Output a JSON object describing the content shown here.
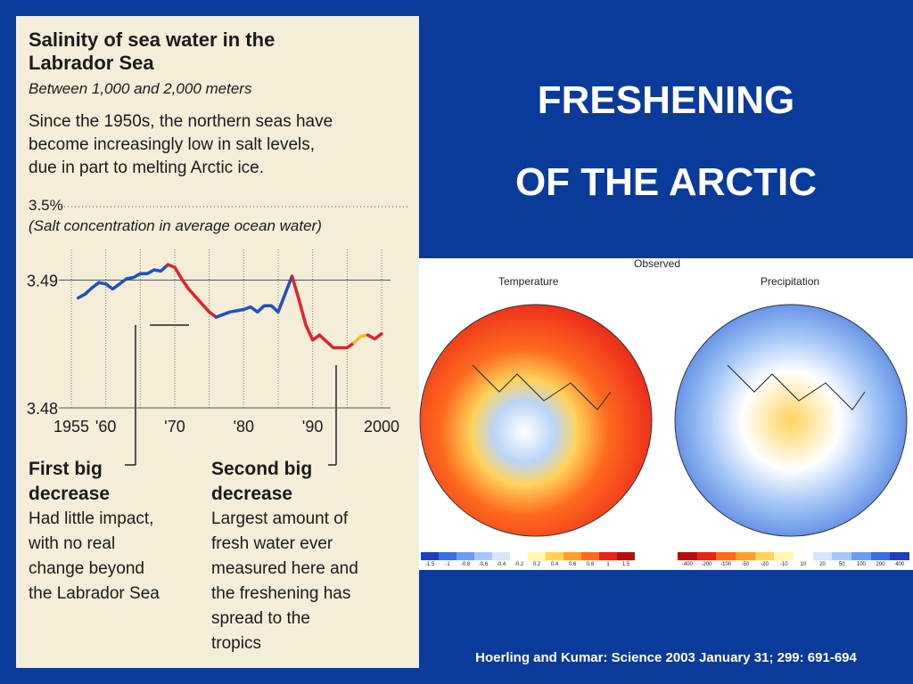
{
  "slide": {
    "title_line1": "FRESHENING",
    "title_line2": "OF THE ARCTIC",
    "citation": "Hoerling and  Kumar:   Science 2003 January 31; 299: 691-694"
  },
  "clipping": {
    "title_line1": "Salinity of sea water in the",
    "title_line2": "Labrador Sea",
    "subtitle": "Between 1,000 and 2,000 meters",
    "desc_line1": "Since the 1950s, the northern seas have",
    "desc_line2": "become increasingly low in salt levels,",
    "desc_line3": "due in part to melting Arctic ice.",
    "ref_value": "3.5%",
    "ref_note": "(Salt concentration in average ocean water)",
    "first_title1": "First big",
    "first_title2": "decrease",
    "first_text1": "Had little impact,",
    "first_text2": "with no real",
    "first_text3": "change beyond",
    "first_text4": "the Labrador Sea",
    "second_title1": "Second big",
    "second_title2": "decrease",
    "second_text1": "Largest amount of",
    "second_text2": "fresh water ever",
    "second_text3": "measured here and",
    "second_text4": "the freshening has",
    "second_text5": "spread to the",
    "second_text6": "tropics"
  },
  "maps": {
    "observed": "Observed",
    "temperature": "Temperature",
    "precipitation": "Precipitation",
    "temp_ticks": [
      "-1.5",
      "-1",
      "-0.8",
      "-0.6",
      "-0.4",
      "-0.2",
      "0.2",
      "0.4",
      "0.6",
      "0.8",
      "1",
      "1.5"
    ],
    "precip_ticks": [
      "-400",
      "-200",
      "-100",
      "-50",
      "-20",
      "-10",
      "10",
      "20",
      "50",
      "100",
      "200",
      "400"
    ],
    "temp_colors": [
      "#1f3fb8",
      "#3b6fdc",
      "#6b9cf0",
      "#a6c8f6",
      "#d7e6fb",
      "#ffffff",
      "#fff7b0",
      "#ffd35a",
      "#ffa02e",
      "#ff6a1f",
      "#e8231a",
      "#b51010"
    ],
    "precip_colors": [
      "#b51010",
      "#e8231a",
      "#ff6a1f",
      "#ffa02e",
      "#ffd35a",
      "#fff7b0",
      "#ffffff",
      "#d7e6fb",
      "#a6c8f6",
      "#6b9cf0",
      "#3b6fdc",
      "#1f3fb8"
    ]
  },
  "chart_data": {
    "type": "line",
    "x_ticks": [
      "1955",
      "'60",
      "'70",
      "'80",
      "'90",
      "2000"
    ],
    "x_tick_values": [
      1955,
      1960,
      1970,
      1980,
      1990,
      2000
    ],
    "y_ticks": [
      "3.49",
      "3.48"
    ],
    "y_tick_values": [
      3.49,
      3.48
    ],
    "xlim": [
      1955,
      2000
    ],
    "ylim": [
      3.48,
      3.4924
    ],
    "grid": true,
    "line_colors": {
      "blue": "#1f4fc0",
      "red": "#e0222a",
      "yellow": "#f0c020"
    },
    "series": [
      {
        "segments": [
          {
            "color": "blue",
            "x": [
              1956,
              1957,
              1958,
              1959,
              1960,
              1961,
              1962,
              1963,
              1964,
              1965,
              1966,
              1967,
              1968,
              1969
            ],
            "y": [
              3.4886,
              3.4889,
              3.4894,
              3.4898,
              3.4897,
              3.4893,
              3.4897,
              3.4901,
              3.4902,
              3.4905,
              3.4905,
              3.4908,
              3.4907,
              3.4912
            ]
          },
          {
            "color": "red",
            "x": [
              1969,
              1970,
              1971,
              1972,
              1973,
              1974,
              1975,
              1976
            ],
            "y": [
              3.4912,
              3.491,
              3.4901,
              3.4893,
              3.4887,
              3.4881,
              3.4875,
              3.4871
            ]
          },
          {
            "color": "blue",
            "x": [
              1976,
              1977,
              1978,
              1979,
              1980,
              1981,
              1982,
              1983,
              1984,
              1985,
              1986,
              1987
            ],
            "y": [
              3.4871,
              3.4873,
              3.4875,
              3.4876,
              3.4877,
              3.4879,
              3.4875,
              3.488,
              3.488,
              3.4875,
              3.4889,
              3.4903
            ]
          },
          {
            "color": "red",
            "x": [
              1987,
              1988,
              1989,
              1990,
              1991,
              1992,
              1993,
              1994,
              1995,
              1996
            ],
            "y": [
              3.4903,
              3.4885,
              3.4865,
              3.4853,
              3.4857,
              3.4852,
              3.4847,
              3.4847,
              3.4847,
              3.4851
            ]
          },
          {
            "color": "yellow",
            "x": [
              1996,
              1997,
              1998
            ],
            "y": [
              3.4851,
              3.4856,
              3.4857
            ]
          },
          {
            "color": "red",
            "x": [
              1998,
              1999,
              2000
            ],
            "y": [
              3.4857,
              3.4854,
              3.4858
            ]
          }
        ]
      }
    ]
  }
}
